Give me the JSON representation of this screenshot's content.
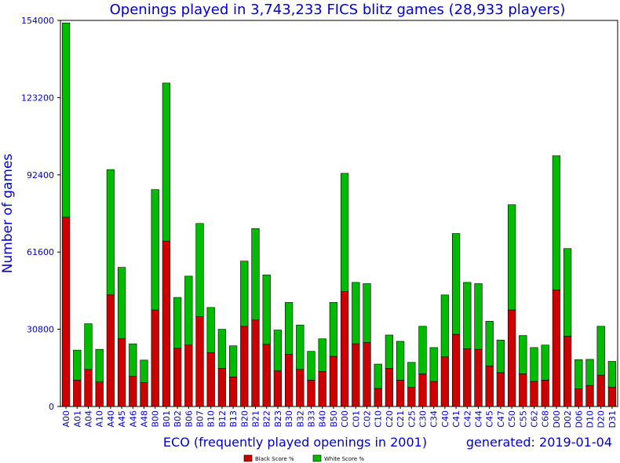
{
  "chart_data": {
    "type": "bar",
    "stacked": true,
    "title": "Openings played in 3,743,233 FICS blitz games (28,933 players)",
    "xlabel": "ECO (frequently played openings in 2001)",
    "ylabel": "Number of games",
    "generated": "generated: 2019-01-04",
    "ylim": [
      0,
      154000
    ],
    "yticks": [
      "0",
      "30800",
      "61600",
      "92400",
      "123200",
      "154000"
    ],
    "yticks_values": [
      0,
      30800,
      61600,
      92400,
      123200,
      154000
    ],
    "categories": [
      "A00",
      "A01",
      "A04",
      "A10",
      "A40",
      "A45",
      "A46",
      "A48",
      "B00",
      "B01",
      "B02",
      "B06",
      "B07",
      "B10",
      "B12",
      "B13",
      "B20",
      "B21",
      "B22",
      "B23",
      "B30",
      "B32",
      "B33",
      "B40",
      "B50",
      "C00",
      "C01",
      "C02",
      "C10",
      "C20",
      "C21",
      "C25",
      "C30",
      "C34",
      "C40",
      "C41",
      "C42",
      "C44",
      "C45",
      "C47",
      "C50",
      "C55",
      "C62",
      "C68",
      "D00",
      "D02",
      "D06",
      "D10",
      "D20",
      "D31"
    ],
    "series": [
      {
        "name": "Black Score %",
        "color": "#cc0000",
        "values": [
          75500,
          10500,
          14800,
          9800,
          44500,
          27000,
          12000,
          9500,
          38500,
          66000,
          23200,
          24500,
          35800,
          21500,
          15200,
          11800,
          32000,
          34500,
          24800,
          14200,
          20800,
          14800,
          10500,
          14000,
          20000,
          45800,
          25000,
          25500,
          7200,
          15200,
          10500,
          7600,
          13000,
          10000,
          19800,
          28800,
          23000,
          22800,
          16200,
          13500,
          38500,
          13000,
          10000,
          10500,
          46500,
          28000,
          7000,
          8400,
          12500,
          7700
        ]
      },
      {
        "name": "White Score %",
        "color": "#00bb00",
        "values": [
          77500,
          12000,
          18200,
          13000,
          50000,
          28500,
          13000,
          9000,
          48000,
          63000,
          20300,
          27500,
          37200,
          18000,
          15600,
          12400,
          26000,
          36500,
          27700,
          16300,
          20700,
          17700,
          11500,
          13000,
          21500,
          47200,
          24500,
          23500,
          9700,
          13300,
          15500,
          10000,
          19000,
          13500,
          24700,
          40200,
          26500,
          26200,
          17800,
          13000,
          42000,
          15300,
          13500,
          14000,
          53500,
          35000,
          11700,
          10400,
          19500,
          10300
        ]
      }
    ],
    "legend_position": "bottom-center",
    "grid": false
  }
}
